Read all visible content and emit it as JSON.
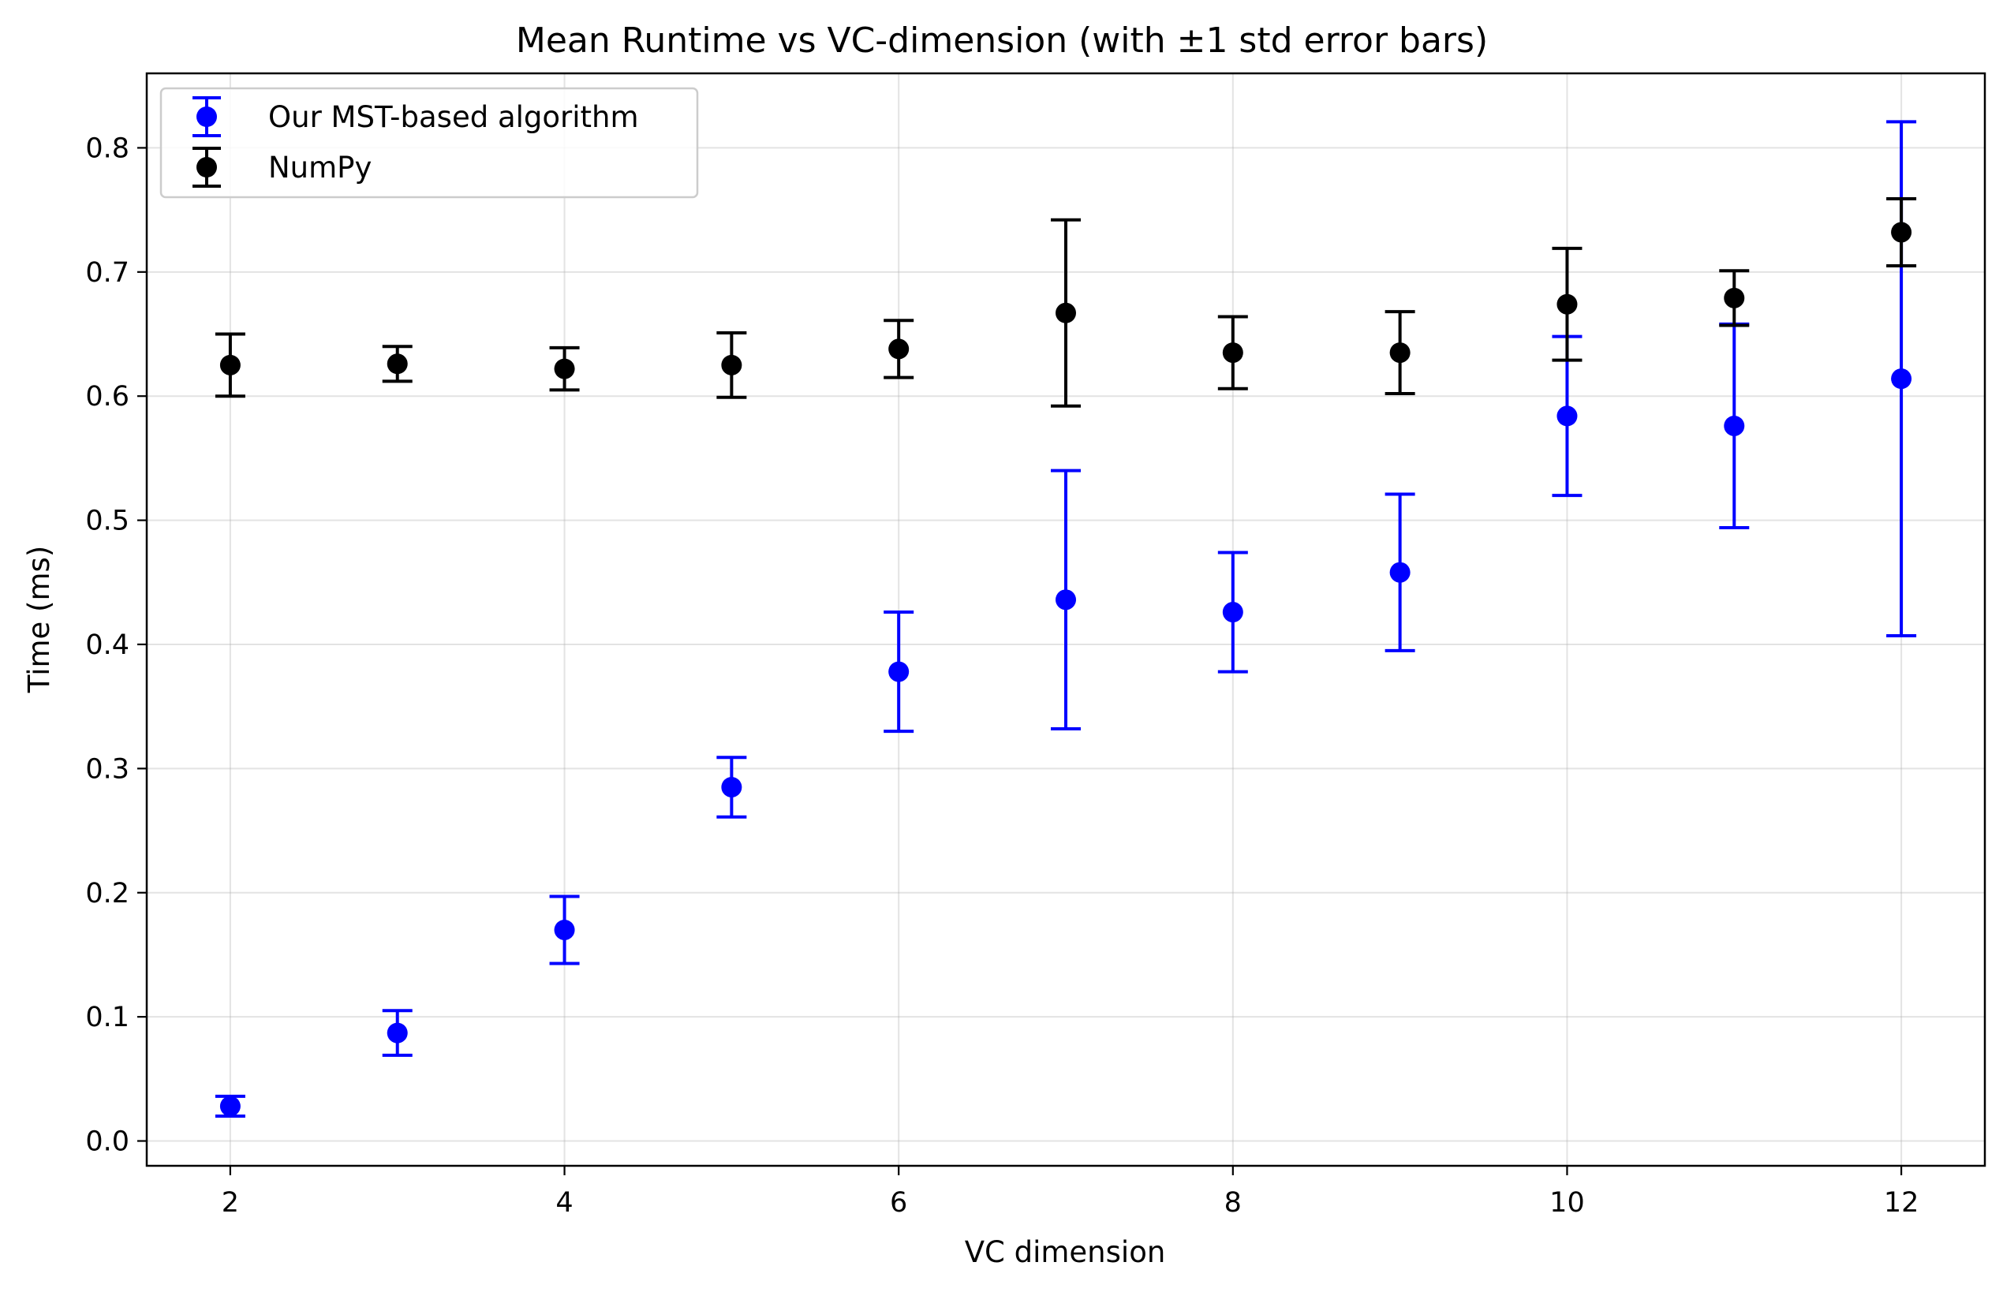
{
  "chart_data": {
    "type": "scatter",
    "title": "Mean Runtime vs VC-dimension (with ±1 std error bars)",
    "xlabel": "VC dimension",
    "ylabel": "Time (ms)",
    "xlim": [
      1.5,
      12.5
    ],
    "ylim": [
      -0.02,
      0.86
    ],
    "xticks": [
      2,
      4,
      6,
      8,
      10,
      12
    ],
    "xtick_labels": [
      "2",
      "4",
      "6",
      "8",
      "10",
      "12"
    ],
    "yticks": [
      0.0,
      0.1,
      0.2,
      0.3,
      0.4,
      0.5,
      0.6,
      0.7,
      0.8
    ],
    "ytick_labels": [
      "0.0",
      "0.1",
      "0.2",
      "0.3",
      "0.4",
      "0.5",
      "0.6",
      "0.7",
      "0.8"
    ],
    "grid": true,
    "legend_position": "top-left",
    "x": [
      2,
      3,
      4,
      5,
      6,
      7,
      8,
      9,
      10,
      11,
      12
    ],
    "series": [
      {
        "name": "Our MST-based algorithm",
        "color": "#0000ff",
        "marker": "circle",
        "values": [
          0.028,
          0.087,
          0.17,
          0.285,
          0.378,
          0.436,
          0.426,
          0.458,
          0.584,
          0.576,
          0.614
        ],
        "errors": [
          0.008,
          0.018,
          0.027,
          0.024,
          0.048,
          0.104,
          0.048,
          0.063,
          0.064,
          0.082,
          0.207
        ]
      },
      {
        "name": "NumPy",
        "color": "#000000",
        "marker": "circle",
        "values": [
          0.625,
          0.626,
          0.622,
          0.625,
          0.638,
          0.667,
          0.635,
          0.635,
          0.674,
          0.679,
          0.732
        ],
        "errors": [
          0.025,
          0.014,
          0.017,
          0.026,
          0.023,
          0.075,
          0.029,
          0.033,
          0.045,
          0.022,
          0.027
        ]
      }
    ]
  }
}
